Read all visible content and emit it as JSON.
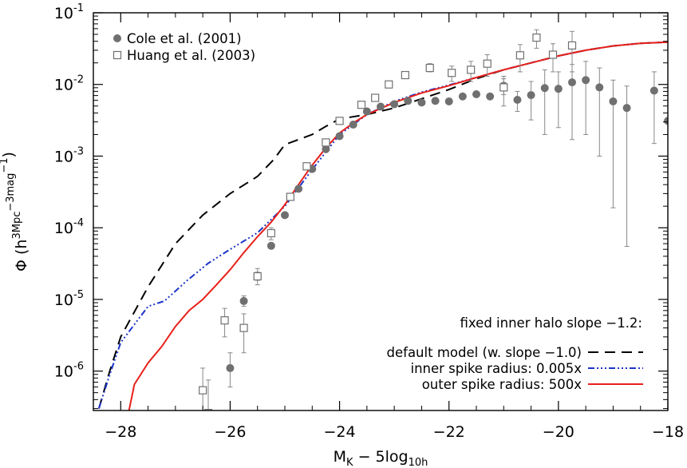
{
  "chart_data": {
    "type": "scatter",
    "xlabel": "M_K − 5log_10h",
    "ylabel": "Φ (h^3Mpc^−3mag^−1)",
    "xlim": [
      -28.5,
      -18
    ],
    "ylim_log10": [
      -6.55,
      -1
    ],
    "y_scale": "log",
    "grid": false,
    "x_ticks": [
      -28,
      -26,
      -24,
      -22,
      -20,
      -18
    ],
    "x_tick_labels": [
      "−28",
      "−26",
      "−24",
      "−22",
      "−20",
      "−18"
    ],
    "y_ticks_exponent": [
      -1,
      -2,
      -3,
      -4,
      -5,
      -6
    ],
    "y_tick_labels": [
      "10^-1",
      "10^-2",
      "10^-3",
      "10^-4",
      "10^-5",
      "10^-6"
    ],
    "data_legend": [
      {
        "name": "Cole et al. (2001)",
        "marker": "filled-circle"
      },
      {
        "name": "Huang et al. (2003)",
        "marker": "open-square"
      }
    ],
    "annotation": "fixed inner halo slope −1.2:",
    "series": [
      {
        "name": "Cole et al. (2001)",
        "marker": "filled-circle",
        "color": "#707070",
        "points": [
          {
            "x": -26.0,
            "y": 1.1e-06,
            "lo": 6e-07,
            "hi": 1.8e-06
          },
          {
            "x": -25.75,
            "y": 9.5e-06,
            "lo": 8e-06,
            "hi": 1.12e-05
          },
          {
            "x": -25.5,
            "y": 2.1e-05,
            "lo": 1.85e-05,
            "hi": 2.4e-05
          },
          {
            "x": -25.25,
            "y": 5.6e-05
          },
          {
            "x": -25.0,
            "y": 0.00015
          },
          {
            "x": -24.75,
            "y": 0.00035
          },
          {
            "x": -24.5,
            "y": 0.00066
          },
          {
            "x": -24.25,
            "y": 0.00125
          },
          {
            "x": -24.0,
            "y": 0.0019
          },
          {
            "x": -23.75,
            "y": 0.00275
          },
          {
            "x": -23.5,
            "y": 0.0042
          },
          {
            "x": -23.25,
            "y": 0.0049
          },
          {
            "x": -23.0,
            "y": 0.0053
          },
          {
            "x": -22.75,
            "y": 0.0059
          },
          {
            "x": -22.5,
            "y": 0.0056
          },
          {
            "x": -22.25,
            "y": 0.0059
          },
          {
            "x": -22.0,
            "y": 0.0058
          },
          {
            "x": -21.75,
            "y": 0.0068
          },
          {
            "x": -21.5,
            "y": 0.0073
          },
          {
            "x": -21.25,
            "y": 0.0068
          },
          {
            "x": -21.0,
            "y": 0.0096,
            "lo": 0.0072,
            "hi": 0.012
          },
          {
            "x": -20.75,
            "y": 0.0061,
            "lo": 0.0042,
            "hi": 0.008
          },
          {
            "x": -20.5,
            "y": 0.0071,
            "lo": 0.0032,
            "hi": 0.011
          },
          {
            "x": -20.25,
            "y": 0.0089,
            "lo": 0.002,
            "hi": 0.016
          },
          {
            "x": -20.0,
            "y": 0.0087,
            "lo": 0.0025,
            "hi": 0.015
          },
          {
            "x": -19.75,
            "y": 0.0107,
            "lo": 0.0017,
            "hi": 0.019
          },
          {
            "x": -19.5,
            "y": 0.0115,
            "lo": 0.002,
            "hi": 0.021
          },
          {
            "x": -19.25,
            "y": 0.0091,
            "lo": 0.001,
            "hi": 0.017
          },
          {
            "x": -19.0,
            "y": 0.0058,
            "lo": 0.00019,
            "hi": 0.0115
          },
          {
            "x": -18.75,
            "y": 0.0047,
            "lo": 5.5e-05,
            "hi": 0.0095
          },
          {
            "x": -18.25,
            "y": 0.0082,
            "lo": 0.0015,
            "hi": 0.015
          },
          {
            "x": -18.0,
            "y": 0.0031
          }
        ]
      },
      {
        "name": "Huang et al. (2003)",
        "marker": "open-square",
        "color": "#707070",
        "points": [
          {
            "x": -26.5,
            "y": 5.4e-07,
            "lo": 1e-07,
            "hi": 1.1e-06
          },
          {
            "x": -26.4,
            "y": 2.6e-07,
            "lo": 1e-07,
            "hi": 7.5e-07
          },
          {
            "x": -26.1,
            "y": 5.1e-06,
            "lo": 3e-06,
            "hi": 7.5e-06
          },
          {
            "x": -25.75,
            "y": 4e-06,
            "lo": 1.8e-06,
            "hi": 6.3e-06
          },
          {
            "x": -25.5,
            "y": 2.1e-05,
            "lo": 1.6e-05,
            "hi": 2.7e-05
          },
          {
            "x": -25.25,
            "y": 8.4e-05,
            "lo": 6.8e-05,
            "hi": 0.0001
          },
          {
            "x": -24.9,
            "y": 0.00027
          },
          {
            "x": -24.6,
            "y": 0.00072
          },
          {
            "x": -24.25,
            "y": 0.00155
          },
          {
            "x": -24.0,
            "y": 0.0031
          },
          {
            "x": -23.6,
            "y": 0.0052
          },
          {
            "x": -23.35,
            "y": 0.0065
          },
          {
            "x": -23.1,
            "y": 0.01
          },
          {
            "x": -22.8,
            "y": 0.0135
          },
          {
            "x": -22.35,
            "y": 0.017,
            "lo": 0.015,
            "hi": 0.0195
          },
          {
            "x": -21.95,
            "y": 0.0145,
            "lo": 0.011,
            "hi": 0.018
          },
          {
            "x": -21.6,
            "y": 0.016,
            "lo": 0.011,
            "hi": 0.021
          },
          {
            "x": -21.3,
            "y": 0.0195,
            "lo": 0.013,
            "hi": 0.026
          },
          {
            "x": -21.0,
            "y": 0.0091,
            "lo": 0.005,
            "hi": 0.013
          },
          {
            "x": -20.7,
            "y": 0.0255,
            "lo": 0.015,
            "hi": 0.036
          },
          {
            "x": -20.4,
            "y": 0.045,
            "lo": 0.032,
            "hi": 0.058
          },
          {
            "x": -20.1,
            "y": 0.026,
            "lo": 0.015,
            "hi": 0.037
          },
          {
            "x": -19.75,
            "y": 0.035,
            "lo": 0.015,
            "hi": 0.055
          }
        ]
      },
      {
        "name": "default model (w. slope −1.0)",
        "style": "dashed",
        "color": "#000000",
        "points": [
          {
            "x": -28.4,
            "y": 3e-07
          },
          {
            "x": -28.2,
            "y": 1e-06
          },
          {
            "x": -28.0,
            "y": 3e-06
          },
          {
            "x": -27.5,
            "y": 1.5e-05
          },
          {
            "x": -27.0,
            "y": 6e-05
          },
          {
            "x": -26.5,
            "y": 0.00015
          },
          {
            "x": -26.0,
            "y": 0.0003
          },
          {
            "x": -25.5,
            "y": 0.00052
          },
          {
            "x": -25.2,
            "y": 0.0009
          },
          {
            "x": -25.0,
            "y": 0.00145
          },
          {
            "x": -24.75,
            "y": 0.0017
          },
          {
            "x": -24.5,
            "y": 0.002
          },
          {
            "x": -24.25,
            "y": 0.0026
          },
          {
            "x": -24.0,
            "y": 0.0033
          },
          {
            "x": -23.5,
            "y": 0.0038
          },
          {
            "x": -23.0,
            "y": 0.0047
          },
          {
            "x": -22.5,
            "y": 0.0063
          },
          {
            "x": -22.0,
            "y": 0.0085
          },
          {
            "x": -21.5,
            "y": 0.012
          },
          {
            "x": -21.0,
            "y": 0.016
          },
          {
            "x": -20.5,
            "y": 0.02
          },
          {
            "x": -20.0,
            "y": 0.025
          },
          {
            "x": -19.5,
            "y": 0.03
          },
          {
            "x": -19.0,
            "y": 0.0345
          },
          {
            "x": -18.5,
            "y": 0.0375
          },
          {
            "x": -18.0,
            "y": 0.039
          }
        ]
      },
      {
        "name": "inner spike radius: 0.005x",
        "style": "dash-dot-dot-dot",
        "color": "#1c34c8",
        "points": [
          {
            "x": -28.4,
            "y": 3e-07
          },
          {
            "x": -28.2,
            "y": 9e-07
          },
          {
            "x": -28.0,
            "y": 2.5e-06
          },
          {
            "x": -27.5,
            "y": 8e-06
          },
          {
            "x": -27.2,
            "y": 9.5e-06
          },
          {
            "x": -26.8,
            "y": 1.8e-05
          },
          {
            "x": -26.4,
            "y": 3.2e-05
          },
          {
            "x": -26.0,
            "y": 5e-05
          },
          {
            "x": -25.5,
            "y": 8.5e-05
          },
          {
            "x": -25.0,
            "y": 0.0002
          },
          {
            "x": -24.5,
            "y": 0.00065
          },
          {
            "x": -24.0,
            "y": 0.002
          },
          {
            "x": -23.5,
            "y": 0.0038
          },
          {
            "x": -23.0,
            "y": 0.0058
          },
          {
            "x": -22.5,
            "y": 0.0078
          },
          {
            "x": -22.0,
            "y": 0.0098
          },
          {
            "x": -21.5,
            "y": 0.0125
          },
          {
            "x": -21.0,
            "y": 0.016
          },
          {
            "x": -20.5,
            "y": 0.02
          },
          {
            "x": -20.0,
            "y": 0.025
          },
          {
            "x": -19.5,
            "y": 0.03
          },
          {
            "x": -19.0,
            "y": 0.0345
          },
          {
            "x": -18.5,
            "y": 0.0375
          },
          {
            "x": -18.0,
            "y": 0.039
          }
        ]
      },
      {
        "name": "outer spike radius: 500x",
        "style": "solid",
        "color": "#e8201a",
        "points": [
          {
            "x": -27.85,
            "y": 2.8e-07
          },
          {
            "x": -27.75,
            "y": 6.5e-07
          },
          {
            "x": -27.5,
            "y": 1.3e-06
          },
          {
            "x": -27.25,
            "y": 2.2e-06
          },
          {
            "x": -27.0,
            "y": 4.2e-06
          },
          {
            "x": -26.75,
            "y": 7e-06
          },
          {
            "x": -26.5,
            "y": 1e-05
          },
          {
            "x": -26.25,
            "y": 1.6e-05
          },
          {
            "x": -26.0,
            "y": 2.6e-05
          },
          {
            "x": -25.75,
            "y": 4.5e-05
          },
          {
            "x": -25.5,
            "y": 7.5e-05
          },
          {
            "x": -25.25,
            "y": 0.00012
          },
          {
            "x": -25.0,
            "y": 0.00021
          },
          {
            "x": -24.75,
            "y": 0.0004
          },
          {
            "x": -24.5,
            "y": 0.00075
          },
          {
            "x": -24.25,
            "y": 0.0013
          },
          {
            "x": -24.0,
            "y": 0.0021
          },
          {
            "x": -23.75,
            "y": 0.0029
          },
          {
            "x": -23.5,
            "y": 0.0038
          },
          {
            "x": -23.0,
            "y": 0.0056
          },
          {
            "x": -22.5,
            "y": 0.0076
          },
          {
            "x": -22.0,
            "y": 0.0096
          },
          {
            "x": -21.5,
            "y": 0.0125
          },
          {
            "x": -21.0,
            "y": 0.016
          },
          {
            "x": -20.5,
            "y": 0.02
          },
          {
            "x": -20.0,
            "y": 0.025
          },
          {
            "x": -19.5,
            "y": 0.03
          },
          {
            "x": -19.0,
            "y": 0.0345
          },
          {
            "x": -18.5,
            "y": 0.0375
          },
          {
            "x": -18.0,
            "y": 0.039
          }
        ]
      }
    ]
  }
}
